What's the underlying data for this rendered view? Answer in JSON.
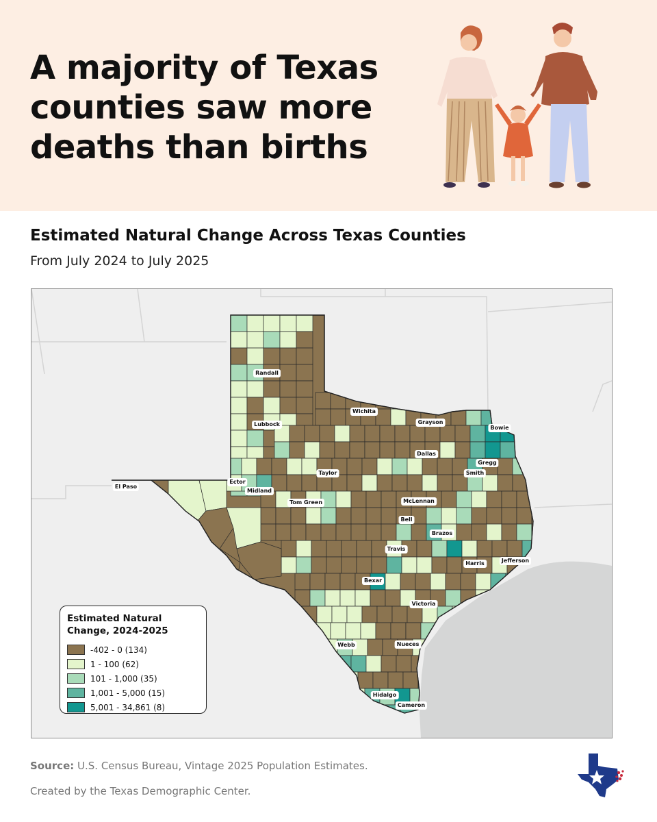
{
  "headline": "A majority of Texas counties saw more deaths than births",
  "map": {
    "title": "Estimated Natural Change Across Texas Counties",
    "subtitle": "From July 2024 to July 2025",
    "legend": {
      "title": "Estimated Natural Change, 2024-2025",
      "items": [
        {
          "label": "-402 - 0 (134)",
          "color": "#8b7450"
        },
        {
          "label": "1 - 100 (62)",
          "color": "#e4f5cc"
        },
        {
          "label": "101 - 1,000 (35)",
          "color": "#a9dbb9"
        },
        {
          "label": "1,001 - 5,000 (15)",
          "color": "#5fb4a0"
        },
        {
          "label": "5,001 - 34,861 (8)",
          "color": "#129790"
        }
      ]
    },
    "county_labels": [
      "Randall",
      "Wichita",
      "Grayson",
      "Bowie",
      "Lubbock",
      "Dallas",
      "Gregg",
      "Smith",
      "Taylor",
      "El Paso",
      "Ector",
      "Midland",
      "Tom Green",
      "McLennan",
      "Bell",
      "Brazos",
      "Travis",
      "Harris",
      "Jefferson",
      "Bexar",
      "Victoria",
      "Webb",
      "Nueces",
      "Hidalgo",
      "Cameron"
    ]
  },
  "footer": {
    "source_label": "Source:",
    "source_text": "U.S. Census Bureau, Vintage 2025 Population Estimates.",
    "credit": "Created by the Texas Demographic Center."
  }
}
